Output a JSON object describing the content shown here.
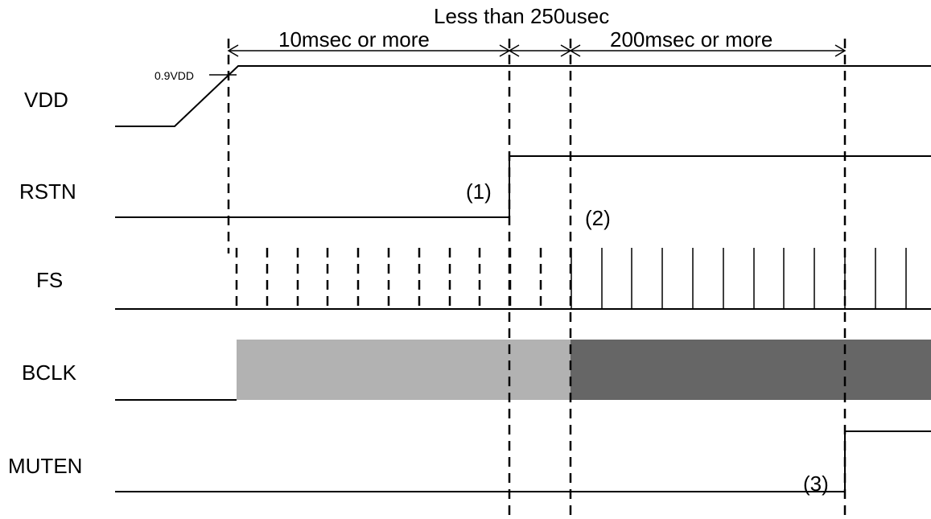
{
  "signals": [
    {
      "id": "vdd",
      "label": "VDD"
    },
    {
      "id": "rstn",
      "label": "RSTN"
    },
    {
      "id": "fs",
      "label": "FS"
    },
    {
      "id": "bclk",
      "label": "BCLK"
    },
    {
      "id": "muten",
      "label": "MUTEN"
    }
  ],
  "annotations": {
    "top_label": "Less than 250usec",
    "interval_1": "10msec or more",
    "interval_2": "200msec or more",
    "vdd_threshold": "0.9VDD",
    "marker_1": "(1)",
    "marker_2": "(2)",
    "marker_3": "(3)"
  },
  "colors": {
    "line": "#000000",
    "bclk_before_reset": "#b2b2b2",
    "bclk_after_reset": "#666666"
  }
}
